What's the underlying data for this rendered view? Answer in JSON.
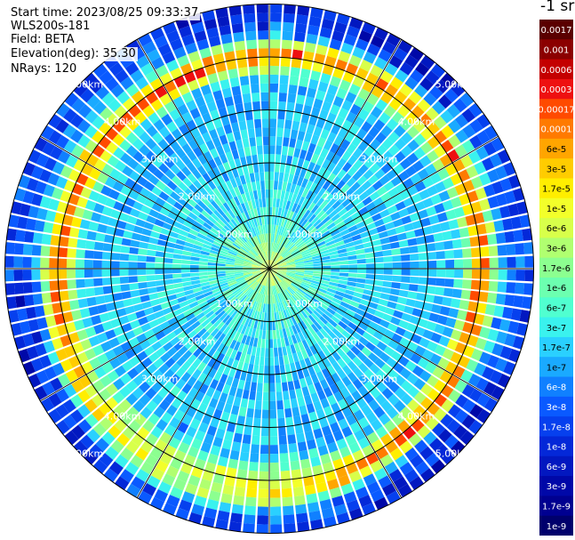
{
  "info": {
    "start_time": "Start time: 2023/08/25 09:33:37",
    "instrument": "WLS200s-181",
    "field": "Field: BETA",
    "elevation": "Elevation(deg): 35.30",
    "nrays": "NRays: 120"
  },
  "colorbar": {
    "unit": "-1 sr",
    "labels": [
      "0.0017",
      "0.001",
      "0.0006",
      "0.0003",
      "0.00017",
      "0.0001",
      "6e-5",
      "3e-5",
      "1.7e-5",
      "1e-5",
      "6e-6",
      "3e-6",
      "1.7e-6",
      "1e-6",
      "6e-7",
      "3e-7",
      "1.7e-7",
      "1e-7",
      "6e-8",
      "3e-8",
      "1.7e-8",
      "1e-8",
      "6e-9",
      "3e-9",
      "1.7e-9",
      "1e-9"
    ],
    "colors": [
      "#5a0000",
      "#8b0000",
      "#c40000",
      "#ee1010",
      "#ff4a00",
      "#ff7a00",
      "#ffa500",
      "#ffcc00",
      "#ffee00",
      "#f3ff2a",
      "#d8ff4a",
      "#b0ff70",
      "#8cff90",
      "#6cffb0",
      "#50ffd0",
      "#3af2ee",
      "#2ad0ff",
      "#1aaaff",
      "#1080ff",
      "#0a5aff",
      "#0640ee",
      "#0428d8",
      "#0218c0",
      "#0008a8",
      "#000090",
      "#00006c"
    ]
  },
  "chart_data": {
    "type": "heatmap",
    "projection": "polar PPI",
    "rays": 120,
    "range_unit": "km",
    "range_max_km": 5.0,
    "range_rings_km": [
      1,
      2,
      3,
      4,
      5
    ],
    "range_labels": [
      "1.00km",
      "2.00km",
      "3.00km",
      "4.00km",
      "5.00km"
    ],
    "spokes_deg": [
      0,
      30,
      60,
      90,
      120,
      150
    ],
    "range_gates": 30,
    "value_scale": "log10",
    "value_range": [
      1e-09,
      0.0017
    ],
    "radial_profile_log10": [
      [
        0.0,
        -5.3
      ],
      [
        0.5,
        -6.0
      ],
      [
        1.0,
        -6.5
      ],
      [
        1.5,
        -6.6
      ],
      [
        2.0,
        -6.7
      ],
      [
        2.5,
        -6.8
      ],
      [
        3.0,
        -6.8
      ],
      [
        3.5,
        -6.9
      ],
      [
        4.0,
        -5.2
      ],
      [
        4.5,
        -7.3
      ],
      [
        5.0,
        -7.7
      ]
    ],
    "layer_peak_range_km": 4.1,
    "layer_peak_value": 3e-05
  }
}
